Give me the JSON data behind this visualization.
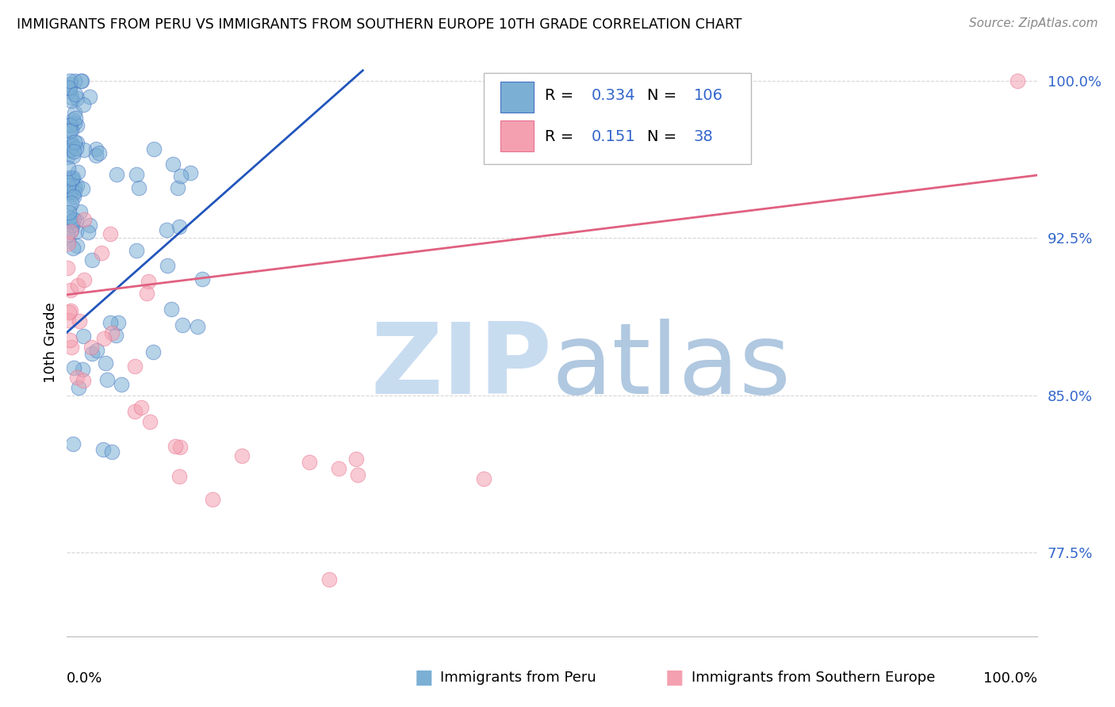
{
  "title": "IMMIGRANTS FROM PERU VS IMMIGRANTS FROM SOUTHERN EUROPE 10TH GRADE CORRELATION CHART",
  "source": "Source: ZipAtlas.com",
  "ylabel": "10th Grade",
  "y_ticks": [
    0.775,
    0.85,
    0.925,
    1.0
  ],
  "y_tick_labels": [
    "77.5%",
    "85.0%",
    "92.5%",
    "100.0%"
  ],
  "legend_blue_R": "0.334",
  "legend_blue_N": "106",
  "legend_pink_R": "0.151",
  "legend_pink_N": "38",
  "blue_scatter_color": "#7BAFD4",
  "blue_edge_color": "#4472C4",
  "pink_scatter_color": "#F4A0B0",
  "pink_edge_color": "#E87090",
  "blue_trend_color": "#2255BB",
  "pink_trend_color": "#E06080",
  "watermark_ZIP_color": "#C8DCF0",
  "watermark_atlas_color": "#B0C8E0",
  "legend_label_blue": "Immigrants from Peru",
  "legend_label_pink": "Immigrants from Southern Europe",
  "number_color": "#3366CC",
  "ylim": [
    0.735,
    1.015
  ],
  "xlim": [
    0.0,
    1.0
  ],
  "blue_trend": [
    0.0,
    0.305,
    0.88,
    1.005
  ],
  "pink_trend": [
    0.0,
    1.0,
    0.898,
    0.955
  ]
}
